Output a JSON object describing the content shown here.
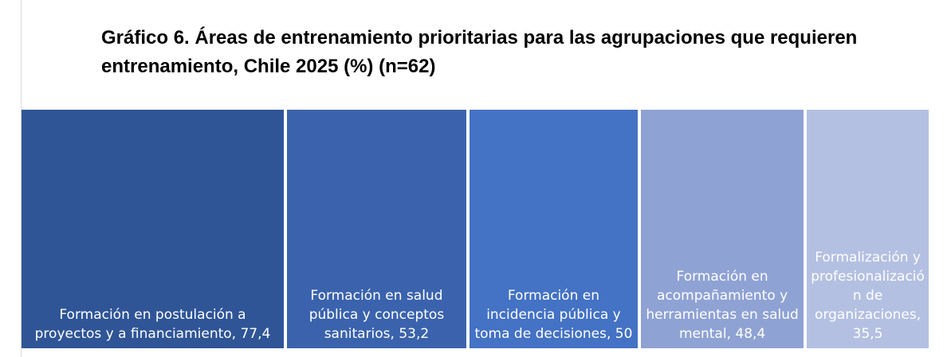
{
  "chart_data": {
    "type": "treemap",
    "title": "Gráfico 6. Áreas de entrenamiento prioritarias para las agrupaciones que requieren entrenamiento, Chile 2025 (%) (n=62)",
    "categories": [
      "Formación en postulación a proyectos y a financiamiento",
      "Formación en salud pública y conceptos sanitarios",
      "Formación en incidencia pública y toma de decisiones",
      "Formación en acompañamiento y herramientas en salud mental",
      "Formalización y profesionalización de organizaciones"
    ],
    "values": [
      77.4,
      53.2,
      50,
      48.4,
      35.5
    ],
    "value_labels": [
      "77,4",
      "53,2",
      "50",
      "48,4",
      "35,5"
    ],
    "colors": [
      "#2f5597",
      "#3b63ad",
      "#4472c4",
      "#8fa2d4",
      "#b4c0e2"
    ]
  }
}
